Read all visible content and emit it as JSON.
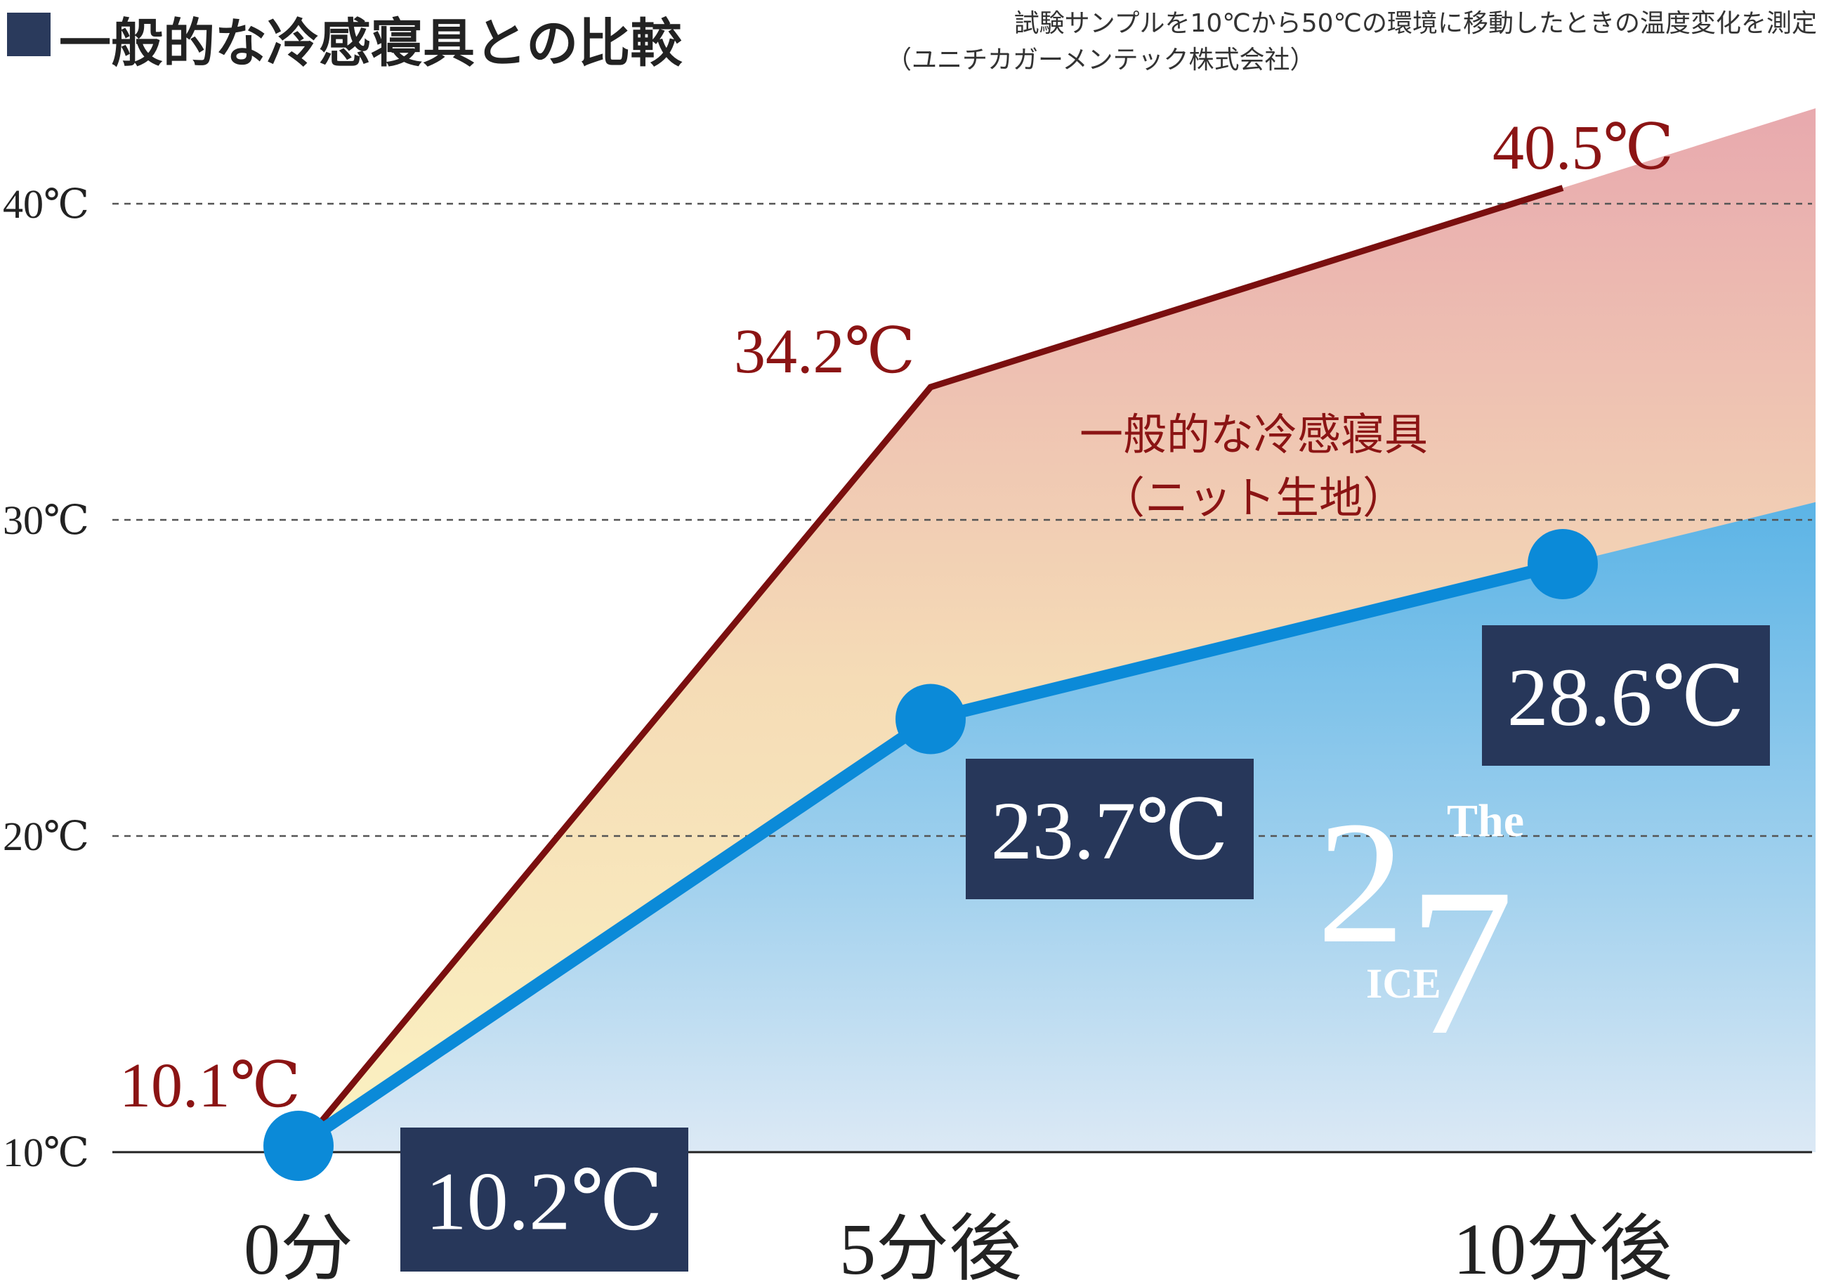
{
  "header": {
    "title": "一般的な冷感寝具との比較",
    "note_line1": "試験サンプルを10℃から50℃の環境に移動したときの温度変化を測定",
    "note_line2": "（ユニチカガーメンテック株式会社）"
  },
  "colors": {
    "title_square": "#2a3a5c",
    "red_line": "#7a0f0f",
    "red_text": "#8b1414",
    "blue_line": "#0b8ad8",
    "label_box": "#27375a"
  },
  "chart_data": {
    "type": "line",
    "categories": [
      "0分",
      "5分後",
      "10分後"
    ],
    "y_ticks": [
      "10℃",
      "20℃",
      "30℃",
      "40℃"
    ],
    "ylim": [
      10,
      43
    ],
    "grid": true,
    "series": [
      {
        "name": "一般的な冷感寝具（ニット生地）",
        "name_line1": "一般的な冷感寝具",
        "name_line2": "（ニット生地）",
        "values": [
          10.1,
          34.2,
          40.5
        ],
        "labels": [
          "10.1℃",
          "34.2℃",
          "40.5℃"
        ]
      },
      {
        "name": "The 27 ICE",
        "values": [
          10.2,
          23.7,
          28.6
        ],
        "labels": [
          "10.2℃",
          "23.7℃",
          "28.6℃"
        ]
      }
    ]
  },
  "logo": {
    "big_2": "2",
    "big_7": "7",
    "the": "The",
    "ice": "ICE"
  }
}
